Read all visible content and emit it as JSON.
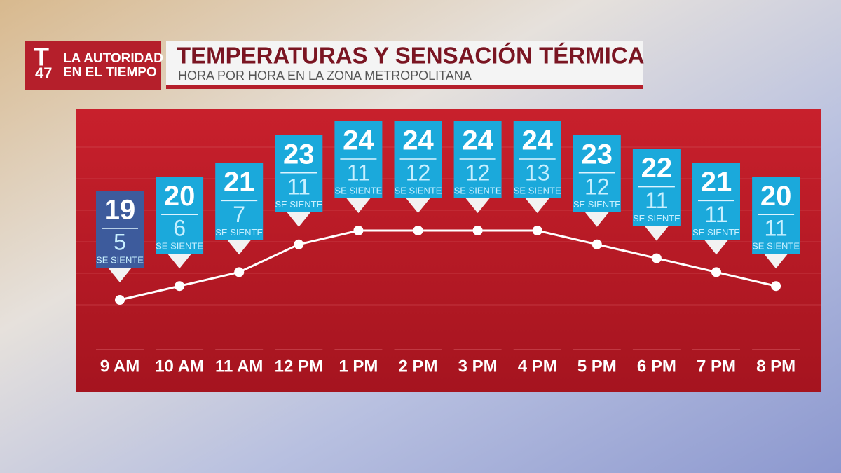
{
  "branding": {
    "channel": "47",
    "tagline": [
      "LA AUTORIDAD",
      "EN EL TIEMPO"
    ]
  },
  "chart_data": {
    "type": "line",
    "title": "TEMPERATURAS Y SENSACIÓN TÉRMICA",
    "subtitle": "HORA POR HORA EN LA ZONA METROPOLITANA",
    "categories": [
      "9 AM",
      "10 AM",
      "11 AM",
      "12 PM",
      "1 PM",
      "2 PM",
      "3 PM",
      "4 PM",
      "5 PM",
      "6 PM",
      "7 PM",
      "8 PM"
    ],
    "series": [
      {
        "color": "#ffffff",
        "values": [
          19,
          20,
          21,
          23,
          24,
          24,
          24,
          24,
          23,
          22,
          21,
          20
        ],
        "label_colors": [
          "#3d5b9c",
          "#1ba9db",
          "#1ba9db",
          "#1ba9db",
          "#1ba9db",
          "#1ba9db",
          "#1ba9db",
          "#1ba9db",
          "#1ba9db",
          "#1ba9db",
          "#1ba9db",
          "#1ba9db"
        ]
      },
      {
        "name": "SE SIENTE",
        "color": "#c8f0ff",
        "values": [
          5,
          6,
          7,
          11,
          11,
          12,
          12,
          13,
          12,
          11,
          11,
          11
        ]
      }
    ]
  }
}
